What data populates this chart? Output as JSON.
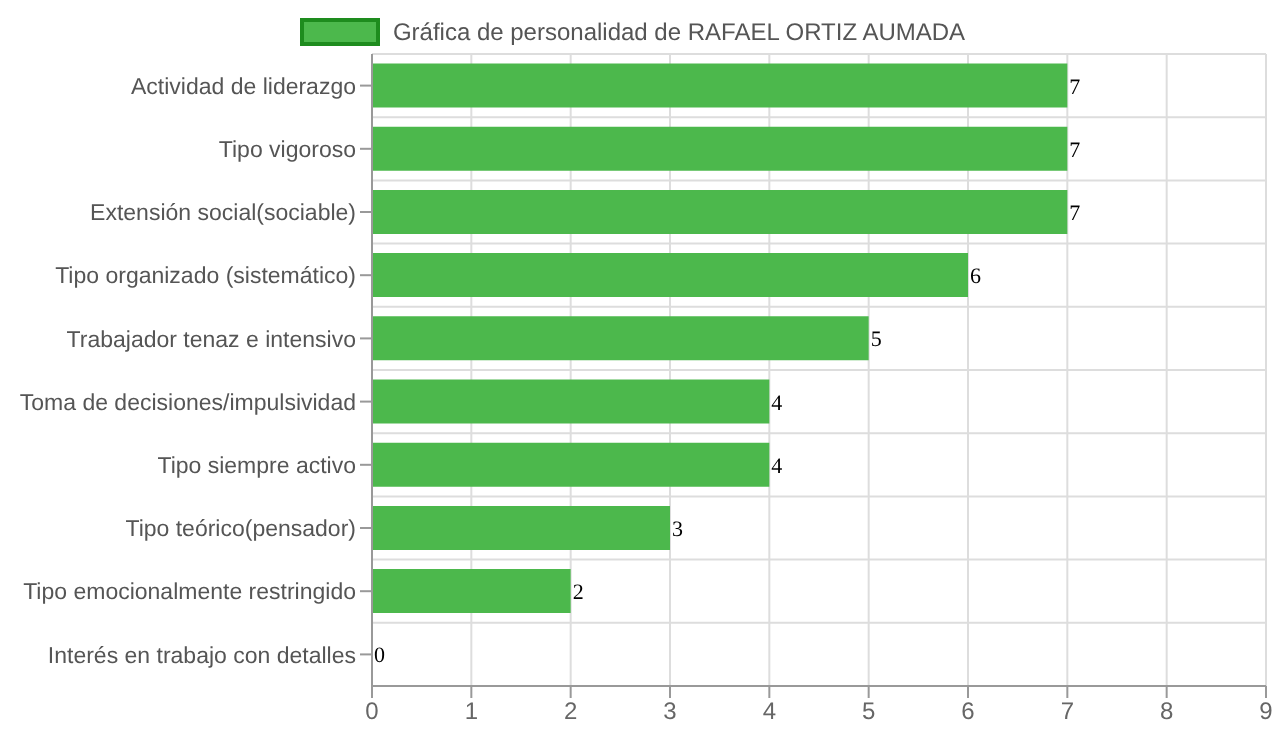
{
  "chart_data": {
    "type": "bar",
    "orientation": "horizontal",
    "categories": [
      "Actividad de liderazgo",
      "Tipo vigoroso",
      "Extensión social(sociable)",
      "Tipo organizado (sistemático)",
      "Trabajador tenaz e intensivo",
      "Toma de decisiones/impulsividad",
      "Tipo siempre activo",
      "Tipo teórico(pensador)",
      "Tipo emocionalmente restringido",
      "Interés en trabajo con detalles"
    ],
    "series": [
      {
        "name": "Gráfica de personalidad de RAFAEL ORTIZ AUMADA",
        "color": "#4cb84c",
        "values": [
          7,
          7,
          7,
          6,
          5,
          4,
          4,
          3,
          2,
          0
        ]
      }
    ],
    "xlim": [
      0,
      9
    ],
    "xticks": [
      0,
      1,
      2,
      3,
      4,
      5,
      6,
      7,
      8,
      9
    ],
    "grid": true,
    "legend": "top",
    "data_labels": true
  }
}
